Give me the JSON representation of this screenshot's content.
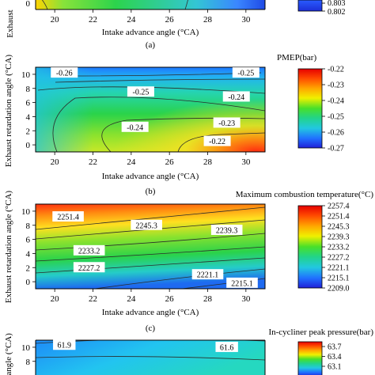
{
  "figure": {
    "panel_a": {
      "caption": "(a)",
      "xlabel": "Intake advance angle (°CA)",
      "ylabel_fragment": "Exhaust",
      "x_ticks": [
        "20",
        "22",
        "24",
        "26",
        "28",
        "30"
      ],
      "y_ticks": [
        "0"
      ],
      "colorbar_ticks": [
        "0.803",
        "0.802"
      ]
    },
    "panel_b": {
      "caption": "(b)",
      "xlabel": "Intake advance angle (°CA)",
      "ylabel": "Exhaust retardation angle (°CA)"
    },
    "panel_c": {
      "caption": "(c)",
      "xlabel": "Intake advance angle (°CA)",
      "ylabel": "Exhaust retardation angle (°CA)"
    },
    "panel_d": {
      "ylabel_fragment": "n angle (°CA)"
    }
  },
  "chart_data": [
    {
      "type": "heatmap",
      "id": "pmep",
      "colorbar_title": "PMEP(bar)",
      "x_range": [
        19,
        31
      ],
      "y_range": [
        -1,
        11
      ],
      "x_ticks": [
        20,
        22,
        24,
        26,
        28,
        30
      ],
      "y_ticks": [
        0,
        2,
        4,
        6,
        8,
        10
      ],
      "value_range": [
        -0.27,
        -0.22
      ],
      "colorbar_ticks": [
        "-0.22",
        "-0.23",
        "-0.24",
        "-0.25",
        "-0.26",
        "-0.27"
      ],
      "contour_labels": [
        {
          "text": "-0.26",
          "x": 20.5,
          "y": 10.2
        },
        {
          "text": "-0.25",
          "x": 30.0,
          "y": 10.2
        },
        {
          "text": "-0.25",
          "x": 24.5,
          "y": 7.5
        },
        {
          "text": "-0.24",
          "x": 29.5,
          "y": 6.8
        },
        {
          "text": "-0.24",
          "x": 24.2,
          "y": 2.5
        },
        {
          "text": "-0.23",
          "x": 29.0,
          "y": 3.1
        },
        {
          "text": "-0.22",
          "x": 28.5,
          "y": 0.5
        }
      ]
    },
    {
      "type": "heatmap",
      "id": "temp",
      "colorbar_title": "Maximum combustion temperature(°C)",
      "x_range": [
        19,
        31
      ],
      "y_range": [
        -1,
        11
      ],
      "x_ticks": [
        20,
        22,
        24,
        26,
        28,
        30
      ],
      "y_ticks": [
        0,
        2,
        4,
        6,
        8,
        10
      ],
      "value_range": [
        2209.0,
        2257.4
      ],
      "colorbar_ticks": [
        "2257.4",
        "2251.4",
        "2245.3",
        "2239.3",
        "2233.2",
        "2227.2",
        "2221.1",
        "2215.1",
        "2209.0"
      ],
      "contour_labels": [
        {
          "text": "2251.4",
          "x": 20.7,
          "y": 9.2
        },
        {
          "text": "2245.3",
          "x": 24.8,
          "y": 8.0
        },
        {
          "text": "2239.3",
          "x": 29.0,
          "y": 7.3
        },
        {
          "text": "2233.2",
          "x": 21.8,
          "y": 4.4
        },
        {
          "text": "2227.2",
          "x": 21.8,
          "y": 2.0
        },
        {
          "text": "2221.1",
          "x": 28.0,
          "y": 1.0
        },
        {
          "text": "2215.1",
          "x": 29.8,
          "y": -0.2
        }
      ]
    },
    {
      "type": "heatmap",
      "id": "pressure",
      "colorbar_title": "In-cycliner peak pressure(bar)",
      "x_range": [
        19,
        31
      ],
      "y_range": [
        -1,
        11
      ],
      "y_ticks": [
        8,
        10
      ],
      "colorbar_ticks": [
        "63.7",
        "63.4",
        "63.1"
      ],
      "contour_labels": [
        {
          "text": "61.9",
          "x": 20.5,
          "y": 10.3
        },
        {
          "text": "61.6",
          "x": 29.0,
          "y": 10.0
        }
      ]
    }
  ]
}
